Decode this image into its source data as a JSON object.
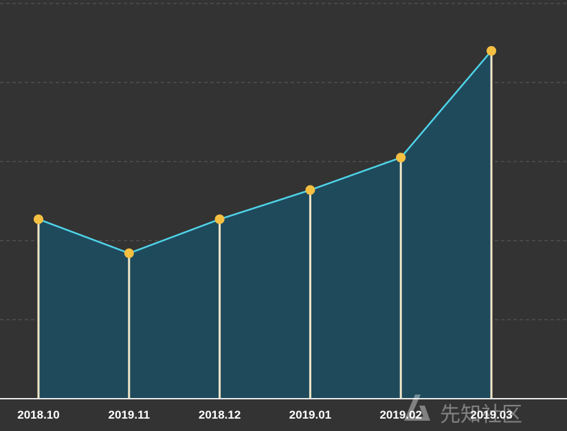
{
  "chart_data": {
    "type": "area",
    "categories": [
      "2018.10",
      "2019.11",
      "2018.12",
      "2019.01",
      "2019.02",
      "2019.03"
    ],
    "values": [
      2.27,
      1.84,
      2.27,
      2.64,
      3.05,
      4.4
    ],
    "xlabel": "",
    "ylabel": "",
    "ylim": [
      0,
      5
    ],
    "grid": true,
    "legend": "none"
  },
  "watermark": {
    "text": "先知社区",
    "icon": "xianzhi-logo-icon"
  },
  "colors": {
    "background": "#333333",
    "area_fill": "#1f4a5c",
    "line": "#4fd3e8",
    "marker": "#f5c042",
    "drop_line": "#f0e6c8",
    "gridline": "#5e5e5e",
    "axis": "#e8e8e8"
  }
}
